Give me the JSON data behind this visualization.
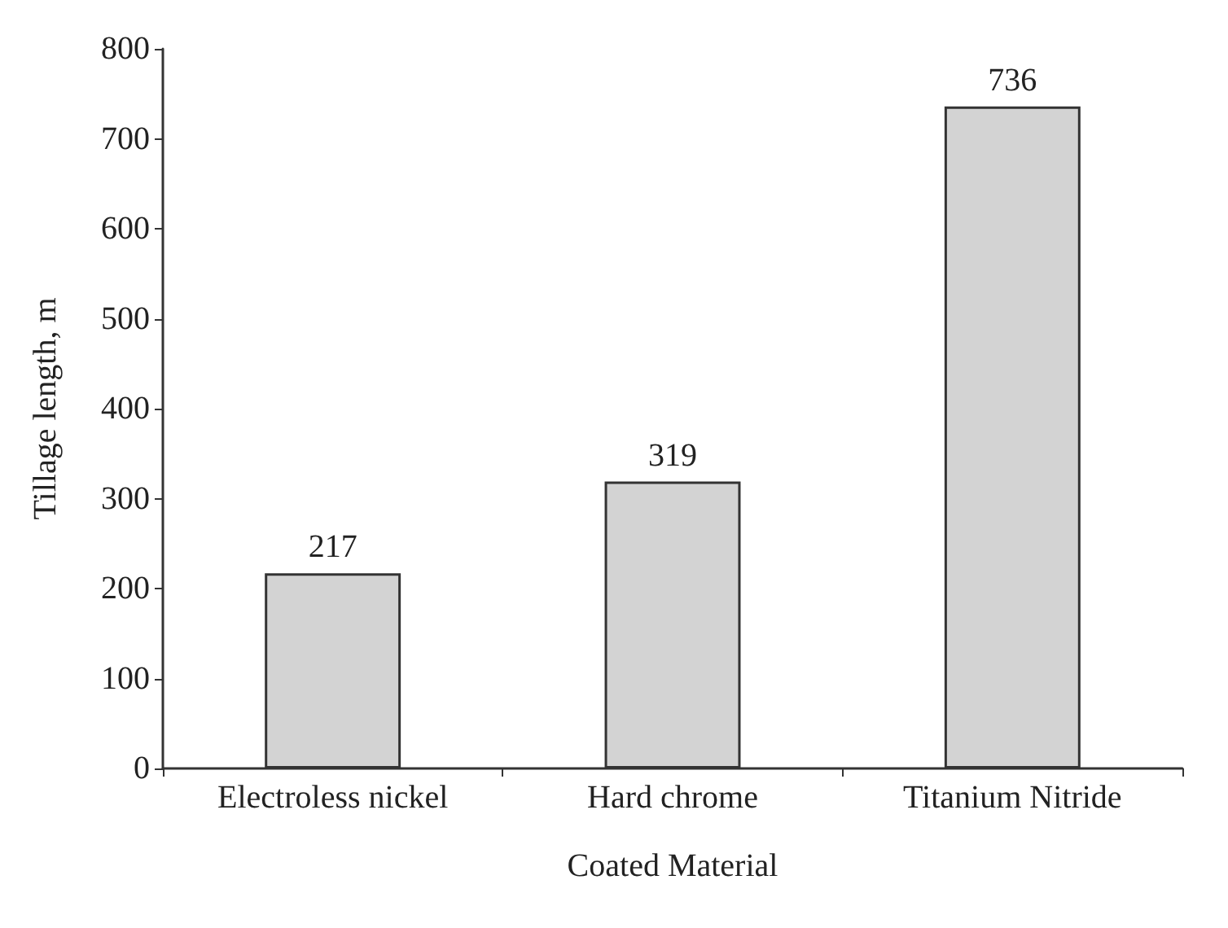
{
  "chart_data": {
    "type": "bar",
    "xlabel": "Coated Material",
    "ylabel": "Tillage length, m",
    "categories": [
      "Electroless nickel",
      "Hard chrome",
      "Titanium Nitride"
    ],
    "values": [
      217,
      319,
      736
    ],
    "color": "#d3d3d3",
    "data_labels": true,
    "ylim": [
      0,
      800
    ],
    "yticks": [
      0,
      100,
      200,
      300,
      400,
      500,
      600,
      700,
      800
    ],
    "grid": false
  }
}
